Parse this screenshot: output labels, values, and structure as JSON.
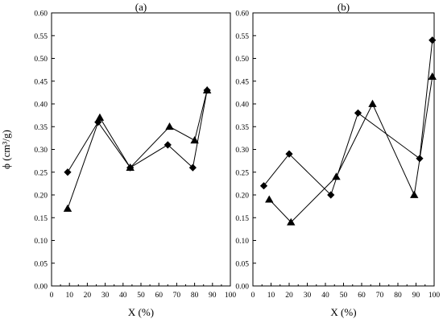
{
  "chart_data": [
    {
      "type": "line",
      "panel_label": "(a)",
      "xlabel": "X (%)",
      "ylabel": "ϕ (cm³/g)",
      "xlim": [
        0,
        100
      ],
      "ylim": [
        0.0,
        0.6
      ],
      "xticks": [
        0,
        10,
        20,
        30,
        40,
        50,
        60,
        70,
        80,
        90,
        100
      ],
      "xtick_labels": [
        "0",
        "10",
        "20",
        "30",
        "40",
        "50",
        "60",
        "70",
        "80",
        "90",
        "100"
      ],
      "yticks": [
        0.0,
        0.05,
        0.1,
        0.15,
        0.2,
        0.25,
        0.3,
        0.35,
        0.4,
        0.45,
        0.5,
        0.55,
        0.6
      ],
      "ytick_labels": [
        "0.00",
        "0.05",
        "0.10",
        "0.15",
        "0.20",
        "0.25",
        "0.30",
        "0.35",
        "0.40",
        "0.45",
        "0.50",
        "0.55",
        "0.60"
      ],
      "grid": false,
      "series": [
        {
          "marker": "diamond",
          "x": [
            9,
            26,
            44,
            65,
            79,
            87
          ],
          "y": [
            0.25,
            0.36,
            0.26,
            0.31,
            0.26,
            0.43
          ]
        },
        {
          "marker": "triangle",
          "x": [
            9,
            27,
            44,
            66,
            80,
            87
          ],
          "y": [
            0.17,
            0.37,
            0.26,
            0.35,
            0.32,
            0.43
          ]
        }
      ]
    },
    {
      "type": "line",
      "panel_label": "(b)",
      "xlabel": "X (%)",
      "ylabel": "",
      "xlim": [
        0,
        100
      ],
      "ylim": [
        0.0,
        0.6
      ],
      "xticks": [
        0,
        10,
        20,
        30,
        40,
        50,
        60,
        70,
        80,
        90,
        100
      ],
      "xtick_labels": [
        "0",
        "10",
        "20",
        "30",
        "40",
        "50",
        "60",
        "70",
        "80",
        "90",
        "100"
      ],
      "yticks": [
        0.0,
        0.05,
        0.1,
        0.15,
        0.2,
        0.25,
        0.3,
        0.35,
        0.4,
        0.45,
        0.5,
        0.55,
        0.6
      ],
      "ytick_labels": [
        "0.00",
        "0.05",
        "0.10",
        "0.15",
        "0.20",
        "0.25",
        "0.30",
        "0.35",
        "0.40",
        "0.45",
        "0.50",
        "0.55",
        "0.60"
      ],
      "grid": false,
      "series": [
        {
          "marker": "diamond",
          "x": [
            6,
            20,
            43,
            58,
            92,
            99
          ],
          "y": [
            0.22,
            0.29,
            0.2,
            0.38,
            0.28,
            0.54
          ]
        },
        {
          "marker": "triangle",
          "x": [
            9,
            21,
            46,
            66,
            89,
            99
          ],
          "y": [
            0.19,
            0.14,
            0.24,
            0.4,
            0.2,
            0.46
          ]
        }
      ]
    }
  ]
}
